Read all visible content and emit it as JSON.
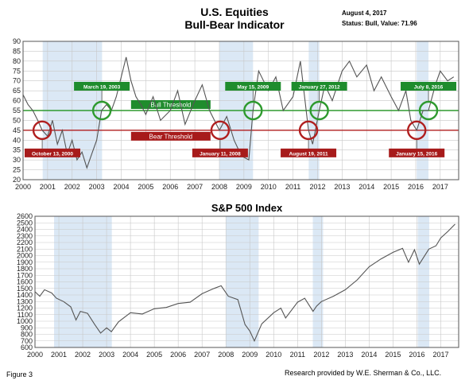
{
  "header": {
    "title_line1": "U.S. Equities",
    "title_line2": "Bull-Bear Indicator",
    "date": "August 4, 2017",
    "status": "Status: Bull, Value: 71.96"
  },
  "footer": {
    "figure": "Figure 3",
    "credit": "Research provided by W.E. Sherman & Co., LLC."
  },
  "colors": {
    "bull_threshold": "#2e9a2e",
    "bear_threshold": "#b01e1e",
    "bull_label": "#1f8c2d",
    "bear_label": "#a71b1b",
    "series": "#555555",
    "shading": "#dbe8f5"
  },
  "chart_data": [
    {
      "type": "line",
      "title": "",
      "xlim": [
        2000,
        2017.75
      ],
      "ylim": [
        20,
        90
      ],
      "y_ticks": [
        20,
        25,
        30,
        35,
        40,
        45,
        50,
        55,
        60,
        65,
        70,
        75,
        80,
        85,
        90
      ],
      "x_tick_labels": [
        "2000",
        "2001",
        "2002",
        "2003",
        "2004",
        "2005",
        "2006",
        "2007",
        "2008",
        "2009",
        "2010",
        "2011",
        "2012",
        "2013",
        "2014",
        "2015",
        "2016",
        "2017"
      ],
      "grid": true,
      "shaded_periods": [
        [
          2000.8,
          2003.22
        ],
        [
          2008.0,
          2009.37
        ],
        [
          2011.64,
          2012.07
        ],
        [
          2016.04,
          2016.52
        ]
      ],
      "thresholds": [
        {
          "name": "Bull Threshold",
          "value": 55
        },
        {
          "name": "Bear Threshold",
          "value": 45
        }
      ],
      "signals": [
        {
          "label": "October 13, 2000",
          "kind": "bear",
          "x": 2000.78,
          "y": 45
        },
        {
          "label": "March 19, 2003",
          "kind": "bull",
          "x": 2003.21,
          "y": 55
        },
        {
          "label": "January 11, 2008",
          "kind": "bear",
          "x": 2008.03,
          "y": 45
        },
        {
          "label": "May 15, 2009",
          "kind": "bull",
          "x": 2009.37,
          "y": 55
        },
        {
          "label": "August 19, 2011",
          "kind": "bear",
          "x": 2011.63,
          "y": 45
        },
        {
          "label": "January 27, 2012",
          "kind": "bull",
          "x": 2012.07,
          "y": 55
        },
        {
          "label": "January 15, 2016",
          "kind": "bear",
          "x": 2016.04,
          "y": 45
        },
        {
          "label": "July 8, 2016",
          "kind": "bull",
          "x": 2016.52,
          "y": 55
        }
      ],
      "series": [
        {
          "x": [
            2000.0,
            2000.2,
            2000.4,
            2000.6,
            2000.78,
            2001.0,
            2001.2,
            2001.4,
            2001.6,
            2001.8,
            2002.0,
            2002.2,
            2002.4,
            2002.6,
            2002.8,
            2003.0,
            2003.2,
            2003.4,
            2003.6,
            2003.8,
            2004.0,
            2004.2,
            2004.4,
            2004.6,
            2004.8,
            2005.0,
            2005.3,
            2005.6,
            2006.0,
            2006.3,
            2006.6,
            2007.0,
            2007.3,
            2007.6,
            2008.0,
            2008.3,
            2008.6,
            2008.9,
            2009.2,
            2009.37,
            2009.6,
            2010.0,
            2010.3,
            2010.6,
            2011.0,
            2011.3,
            2011.63,
            2011.8,
            2012.07,
            2012.3,
            2012.6,
            2013.0,
            2013.3,
            2013.6,
            2014.0,
            2014.3,
            2014.6,
            2015.0,
            2015.3,
            2015.6,
            2015.8,
            2016.04,
            2016.3,
            2016.52,
            2016.8,
            2017.0,
            2017.3,
            2017.55
          ],
          "y": [
            63,
            58,
            55,
            50,
            45,
            42,
            50,
            38,
            45,
            33,
            40,
            30,
            34,
            26,
            33,
            40,
            55,
            58,
            55,
            62,
            72,
            82,
            70,
            62,
            58,
            53,
            62,
            50,
            55,
            65,
            48,
            60,
            68,
            55,
            45,
            52,
            40,
            32,
            30,
            55,
            75,
            65,
            72,
            55,
            62,
            80,
            45,
            38,
            55,
            68,
            60,
            75,
            80,
            72,
            78,
            65,
            72,
            62,
            55,
            65,
            50,
            45,
            55,
            55,
            68,
            75,
            70,
            72
          ]
        }
      ]
    },
    {
      "type": "line",
      "title": "S&P 500 Index",
      "xlim": [
        2000,
        2017.75
      ],
      "ylim": [
        600,
        2600
      ],
      "y_ticks": [
        600,
        700,
        800,
        900,
        1000,
        1100,
        1200,
        1300,
        1400,
        1500,
        1600,
        1700,
        1800,
        1900,
        2000,
        2100,
        2200,
        2300,
        2400,
        2500,
        2600
      ],
      "x_tick_labels": [
        "2000",
        "2001",
        "2002",
        "2003",
        "2004",
        "2005",
        "2006",
        "2007",
        "2008",
        "2009",
        "2010",
        "2011",
        "2012",
        "2013",
        "2014",
        "2015",
        "2016",
        "2017"
      ],
      "grid": true,
      "shaded_periods": [
        [
          2000.8,
          2003.22
        ],
        [
          2008.0,
          2009.37
        ],
        [
          2011.64,
          2012.07
        ],
        [
          2016.04,
          2016.52
        ]
      ],
      "series": [
        {
          "x": [
            2000.0,
            2000.2,
            2000.4,
            2000.7,
            2000.9,
            2001.2,
            2001.5,
            2001.72,
            2001.9,
            2002.2,
            2002.5,
            2002.75,
            2003.0,
            2003.2,
            2003.5,
            2004.0,
            2004.5,
            2005.0,
            2005.5,
            2006.0,
            2006.5,
            2007.0,
            2007.5,
            2007.8,
            2008.1,
            2008.5,
            2008.8,
            2009.0,
            2009.19,
            2009.5,
            2010.0,
            2010.3,
            2010.5,
            2011.0,
            2011.3,
            2011.65,
            2011.8,
            2012.0,
            2012.5,
            2013.0,
            2013.5,
            2014.0,
            2014.5,
            2015.0,
            2015.4,
            2015.65,
            2015.9,
            2016.1,
            2016.5,
            2016.8,
            2017.0,
            2017.3,
            2017.6
          ],
          "y": [
            1450,
            1380,
            1480,
            1430,
            1350,
            1300,
            1220,
            1020,
            1150,
            1120,
            950,
            820,
            900,
            840,
            990,
            1130,
            1110,
            1190,
            1210,
            1270,
            1290,
            1420,
            1500,
            1540,
            1380,
            1330,
            950,
            850,
            700,
            960,
            1130,
            1200,
            1050,
            1290,
            1350,
            1150,
            1230,
            1300,
            1380,
            1480,
            1630,
            1830,
            1950,
            2050,
            2110,
            1900,
            2090,
            1870,
            2100,
            2150,
            2270,
            2370,
            2480
          ]
        }
      ]
    }
  ]
}
